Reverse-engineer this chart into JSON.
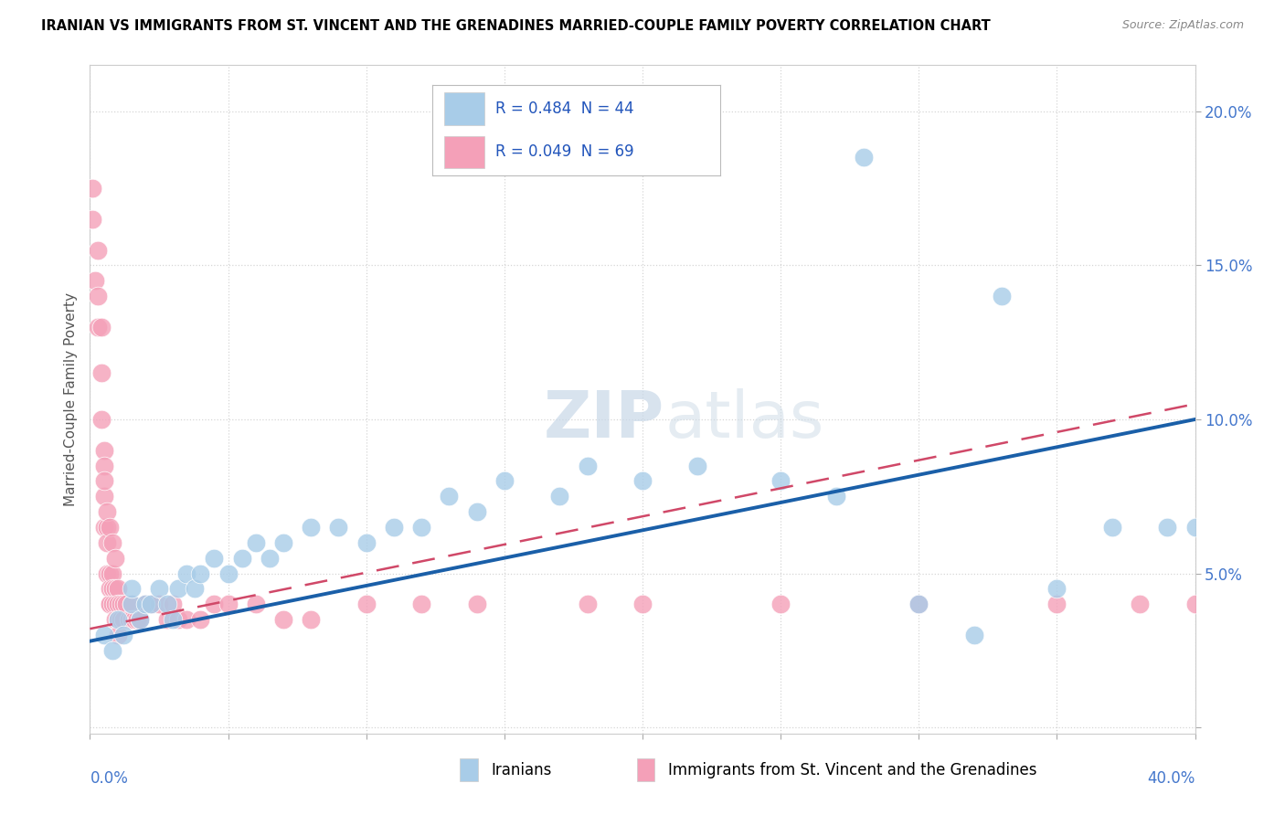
{
  "title": "IRANIAN VS IMMIGRANTS FROM ST. VINCENT AND THE GRENADINES MARRIED-COUPLE FAMILY POVERTY CORRELATION CHART",
  "source": "Source: ZipAtlas.com",
  "ylabel": "Married-Couple Family Poverty",
  "xlim": [
    0.0,
    0.4
  ],
  "ylim": [
    -0.002,
    0.215
  ],
  "yticks": [
    0.0,
    0.05,
    0.1,
    0.15,
    0.2
  ],
  "ytick_labels": [
    "",
    "5.0%",
    "10.0%",
    "15.0%",
    "20.0%"
  ],
  "xticks": [
    0.0,
    0.05,
    0.1,
    0.15,
    0.2,
    0.25,
    0.3,
    0.35,
    0.4
  ],
  "watermark_zip": "ZIP",
  "watermark_atlas": "atlas",
  "legend_text1": "R = 0.484  N = 44",
  "legend_text2": "R = 0.049  N = 69",
  "legend_label1": "Iranians",
  "legend_label2": "Immigrants from St. Vincent and the Grenadines",
  "color_blue": "#a8cce8",
  "color_pink": "#f4a0b8",
  "trend_blue": "#1a5fa8",
  "trend_pink": "#d04868",
  "blue_line_start_y": 0.028,
  "blue_line_end_y": 0.1,
  "pink_line_start_y": 0.032,
  "pink_line_end_y": 0.105,
  "iranians_x": [
    0.005,
    0.008,
    0.01,
    0.012,
    0.015,
    0.015,
    0.018,
    0.02,
    0.022,
    0.025,
    0.028,
    0.03,
    0.032,
    0.035,
    0.038,
    0.04,
    0.045,
    0.05,
    0.055,
    0.06,
    0.065,
    0.07,
    0.08,
    0.09,
    0.1,
    0.11,
    0.12,
    0.13,
    0.14,
    0.15,
    0.17,
    0.18,
    0.2,
    0.22,
    0.25,
    0.28,
    0.3,
    0.33,
    0.35,
    0.37,
    0.39,
    0.4,
    0.27,
    0.32
  ],
  "iranians_y": [
    0.03,
    0.025,
    0.035,
    0.03,
    0.04,
    0.045,
    0.035,
    0.04,
    0.04,
    0.045,
    0.04,
    0.035,
    0.045,
    0.05,
    0.045,
    0.05,
    0.055,
    0.05,
    0.055,
    0.06,
    0.055,
    0.06,
    0.065,
    0.065,
    0.06,
    0.065,
    0.065,
    0.075,
    0.07,
    0.08,
    0.075,
    0.085,
    0.08,
    0.085,
    0.08,
    0.185,
    0.04,
    0.14,
    0.045,
    0.065,
    0.065,
    0.065,
    0.075,
    0.03
  ],
  "svg_x": [
    0.001,
    0.001,
    0.002,
    0.003,
    0.003,
    0.003,
    0.004,
    0.004,
    0.004,
    0.005,
    0.005,
    0.005,
    0.005,
    0.006,
    0.006,
    0.006,
    0.007,
    0.007,
    0.007,
    0.007,
    0.008,
    0.008,
    0.008,
    0.009,
    0.009,
    0.009,
    0.01,
    0.01,
    0.01,
    0.01,
    0.011,
    0.011,
    0.012,
    0.012,
    0.013,
    0.014,
    0.015,
    0.015,
    0.016,
    0.017,
    0.018,
    0.02,
    0.022,
    0.025,
    0.028,
    0.03,
    0.032,
    0.035,
    0.04,
    0.045,
    0.05,
    0.06,
    0.07,
    0.08,
    0.1,
    0.12,
    0.14,
    0.18,
    0.2,
    0.25,
    0.3,
    0.35,
    0.38,
    0.4,
    0.005,
    0.006,
    0.007,
    0.008,
    0.009
  ],
  "svg_y": [
    0.175,
    0.165,
    0.145,
    0.155,
    0.14,
    0.13,
    0.13,
    0.115,
    0.1,
    0.09,
    0.085,
    0.075,
    0.065,
    0.065,
    0.06,
    0.05,
    0.05,
    0.045,
    0.04,
    0.04,
    0.05,
    0.045,
    0.04,
    0.045,
    0.04,
    0.035,
    0.045,
    0.04,
    0.035,
    0.03,
    0.04,
    0.035,
    0.04,
    0.035,
    0.04,
    0.035,
    0.04,
    0.035,
    0.035,
    0.035,
    0.035,
    0.04,
    0.04,
    0.04,
    0.035,
    0.04,
    0.035,
    0.035,
    0.035,
    0.04,
    0.04,
    0.04,
    0.035,
    0.035,
    0.04,
    0.04,
    0.04,
    0.04,
    0.04,
    0.04,
    0.04,
    0.04,
    0.04,
    0.04,
    0.08,
    0.07,
    0.065,
    0.06,
    0.055
  ]
}
